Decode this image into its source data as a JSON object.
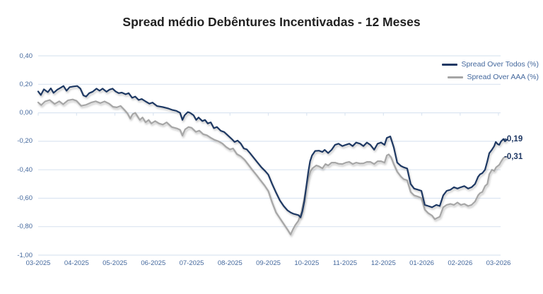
{
  "colors": {
    "series_todos": "#1f3864",
    "series_aaa": "#a6a6a6",
    "gridline": "#dbe5f1",
    "axis_text": "#44689d",
    "annotation_text": "#1f3864",
    "title_text": "#212121",
    "background": "#ffffff"
  },
  "chart_data": {
    "type": "line",
    "title": "Spread médio Debêntures Incentivadas - 12 Meses",
    "xlabel": "",
    "ylabel": "",
    "grid": true,
    "legend_position": "top-right",
    "x_axis": {
      "labels": [
        "03-2025",
        "04-2025",
        "05-2025",
        "06-2025",
        "07-2025",
        "08-2025",
        "09-2025",
        "10-2025",
        "11-2025",
        "12-2025",
        "01-2026",
        "02-2026",
        "03-2026"
      ],
      "unit_note": "x values of points are months after 03-2025"
    },
    "y_axis": {
      "min": -1.0,
      "max": 0.4,
      "step": 0.2,
      "tick_labels": [
        "0,40",
        "0,20",
        "0,00",
        "-0,20",
        "-0,40",
        "-0,60",
        "-0,80",
        "-1,00"
      ],
      "tick_values": [
        0.4,
        0.2,
        0.0,
        -0.2,
        -0.4,
        -0.6,
        -0.8,
        -1.0
      ]
    },
    "annotations": {
      "todos_end": "-0,19",
      "aaa_end": "-0,31"
    },
    "series": [
      {
        "name": "Spread Over Todos (%)",
        "color": "#1f3864",
        "end_value": -0.19,
        "points": [
          [
            0.0,
            0.15
          ],
          [
            0.07,
            0.125
          ],
          [
            0.15,
            0.165
          ],
          [
            0.25,
            0.145
          ],
          [
            0.33,
            0.172
          ],
          [
            0.4,
            0.14
          ],
          [
            0.5,
            0.163
          ],
          [
            0.58,
            0.175
          ],
          [
            0.66,
            0.188
          ],
          [
            0.74,
            0.155
          ],
          [
            0.82,
            0.18
          ],
          [
            0.92,
            0.185
          ],
          [
            1.02,
            0.188
          ],
          [
            1.1,
            0.17
          ],
          [
            1.18,
            0.122
          ],
          [
            1.25,
            0.114
          ],
          [
            1.33,
            0.138
          ],
          [
            1.42,
            0.148
          ],
          [
            1.52,
            0.17
          ],
          [
            1.6,
            0.155
          ],
          [
            1.68,
            0.17
          ],
          [
            1.78,
            0.148
          ],
          [
            1.86,
            0.163
          ],
          [
            1.94,
            0.17
          ],
          [
            2.02,
            0.15
          ],
          [
            2.1,
            0.138
          ],
          [
            2.18,
            0.142
          ],
          [
            2.28,
            0.13
          ],
          [
            2.36,
            0.138
          ],
          [
            2.45,
            0.105
          ],
          [
            2.53,
            0.114
          ],
          [
            2.62,
            0.09
          ],
          [
            2.7,
            0.097
          ],
          [
            2.8,
            0.08
          ],
          [
            2.9,
            0.064
          ],
          [
            2.98,
            0.072
          ],
          [
            3.1,
            0.047
          ],
          [
            3.25,
            0.04
          ],
          [
            3.4,
            0.03
          ],
          [
            3.5,
            0.02
          ],
          [
            3.6,
            0.014
          ],
          [
            3.7,
            0.0
          ],
          [
            3.76,
            -0.05
          ],
          [
            3.82,
            -0.017
          ],
          [
            3.9,
            0.005
          ],
          [
            3.96,
            0.0
          ],
          [
            4.05,
            -0.017
          ],
          [
            4.12,
            -0.05
          ],
          [
            4.18,
            -0.033
          ],
          [
            4.28,
            -0.058
          ],
          [
            4.35,
            -0.05
          ],
          [
            4.42,
            -0.075
          ],
          [
            4.5,
            -0.067
          ],
          [
            4.58,
            -0.108
          ],
          [
            4.66,
            -0.1
          ],
          [
            4.76,
            -0.126
          ],
          [
            4.85,
            -0.135
          ],
          [
            4.95,
            -0.16
          ],
          [
            5.05,
            -0.185
          ],
          [
            5.12,
            -0.205
          ],
          [
            5.2,
            -0.195
          ],
          [
            5.28,
            -0.215
          ],
          [
            5.36,
            -0.25
          ],
          [
            5.44,
            -0.257
          ],
          [
            5.52,
            -0.283
          ],
          [
            5.62,
            -0.316
          ],
          [
            5.72,
            -0.35
          ],
          [
            5.82,
            -0.383
          ],
          [
            5.92,
            -0.41
          ],
          [
            6.0,
            -0.435
          ],
          [
            6.1,
            -0.5
          ],
          [
            6.2,
            -0.56
          ],
          [
            6.3,
            -0.615
          ],
          [
            6.4,
            -0.655
          ],
          [
            6.5,
            -0.685
          ],
          [
            6.58,
            -0.7
          ],
          [
            6.66,
            -0.71
          ],
          [
            6.73,
            -0.715
          ],
          [
            6.79,
            -0.72
          ],
          [
            6.84,
            -0.735
          ],
          [
            6.89,
            -0.69
          ],
          [
            6.94,
            -0.62
          ],
          [
            6.99,
            -0.52
          ],
          [
            7.04,
            -0.42
          ],
          [
            7.09,
            -0.34
          ],
          [
            7.14,
            -0.3
          ],
          [
            7.22,
            -0.268
          ],
          [
            7.32,
            -0.266
          ],
          [
            7.41,
            -0.275
          ],
          [
            7.47,
            -0.26
          ],
          [
            7.56,
            -0.283
          ],
          [
            7.65,
            -0.26
          ],
          [
            7.74,
            -0.225
          ],
          [
            7.83,
            -0.217
          ],
          [
            7.93,
            -0.234
          ],
          [
            8.02,
            -0.225
          ],
          [
            8.11,
            -0.217
          ],
          [
            8.2,
            -0.234
          ],
          [
            8.29,
            -0.209
          ],
          [
            8.39,
            -0.217
          ],
          [
            8.48,
            -0.234
          ],
          [
            8.57,
            -0.209
          ],
          [
            8.66,
            -0.225
          ],
          [
            8.76,
            -0.259
          ],
          [
            8.85,
            -0.217
          ],
          [
            8.94,
            -0.209
          ],
          [
            9.03,
            -0.225
          ],
          [
            9.09,
            -0.176
          ],
          [
            9.18,
            -0.166
          ],
          [
            9.27,
            -0.242
          ],
          [
            9.36,
            -0.35
          ],
          [
            9.46,
            -0.374
          ],
          [
            9.53,
            -0.383
          ],
          [
            9.62,
            -0.391
          ],
          [
            9.71,
            -0.5
          ],
          [
            9.8,
            -0.532
          ],
          [
            9.9,
            -0.54
          ],
          [
            9.99,
            -0.548
          ],
          [
            10.08,
            -0.647
          ],
          [
            10.17,
            -0.655
          ],
          [
            10.27,
            -0.664
          ],
          [
            10.38,
            -0.647
          ],
          [
            10.47,
            -0.655
          ],
          [
            10.56,
            -0.58
          ],
          [
            10.65,
            -0.548
          ],
          [
            10.75,
            -0.54
          ],
          [
            10.84,
            -0.523
          ],
          [
            10.93,
            -0.532
          ],
          [
            11.02,
            -0.523
          ],
          [
            11.11,
            -0.515
          ],
          [
            11.21,
            -0.532
          ],
          [
            11.3,
            -0.523
          ],
          [
            11.39,
            -0.5
          ],
          [
            11.47,
            -0.45
          ],
          [
            11.52,
            -0.432
          ],
          [
            11.58,
            -0.424
          ],
          [
            11.65,
            -0.4
          ],
          [
            11.71,
            -0.34
          ],
          [
            11.76,
            -0.284
          ],
          [
            11.83,
            -0.259
          ],
          [
            11.89,
            -0.234
          ],
          [
            11.93,
            -0.205
          ],
          [
            11.98,
            -0.22
          ],
          [
            12.02,
            -0.225
          ],
          [
            12.07,
            -0.2
          ],
          [
            12.13,
            -0.184
          ],
          [
            12.17,
            -0.2
          ],
          [
            12.22,
            -0.19
          ]
        ]
      },
      {
        "name": "Spread Over AAA (%)",
        "color": "#a6a6a6",
        "end_value": -0.31,
        "points": [
          [
            0.0,
            0.073
          ],
          [
            0.08,
            0.054
          ],
          [
            0.18,
            0.08
          ],
          [
            0.3,
            0.09
          ],
          [
            0.43,
            0.062
          ],
          [
            0.55,
            0.081
          ],
          [
            0.65,
            0.06
          ],
          [
            0.78,
            0.088
          ],
          [
            0.9,
            0.094
          ],
          [
            1.0,
            0.084
          ],
          [
            1.12,
            0.049
          ],
          [
            1.25,
            0.056
          ],
          [
            1.38,
            0.072
          ],
          [
            1.5,
            0.081
          ],
          [
            1.62,
            0.068
          ],
          [
            1.73,
            0.08
          ],
          [
            1.85,
            0.064
          ],
          [
            1.95,
            0.042
          ],
          [
            2.05,
            0.038
          ],
          [
            2.15,
            0.048
          ],
          [
            2.25,
            0.02
          ],
          [
            2.33,
            -0.005
          ],
          [
            2.4,
            -0.04
          ],
          [
            2.46,
            -0.01
          ],
          [
            2.53,
            0.0
          ],
          [
            2.6,
            -0.03
          ],
          [
            2.65,
            -0.05
          ],
          [
            2.72,
            -0.033
          ],
          [
            2.8,
            -0.067
          ],
          [
            2.88,
            -0.05
          ],
          [
            2.95,
            -0.075
          ],
          [
            3.05,
            -0.058
          ],
          [
            3.15,
            -0.075
          ],
          [
            3.25,
            -0.083
          ],
          [
            3.35,
            -0.067
          ],
          [
            3.48,
            -0.1
          ],
          [
            3.62,
            -0.11
          ],
          [
            3.7,
            -0.12
          ],
          [
            3.76,
            -0.16
          ],
          [
            3.83,
            -0.116
          ],
          [
            3.92,
            -0.1
          ],
          [
            4.0,
            -0.105
          ],
          [
            4.11,
            -0.134
          ],
          [
            4.2,
            -0.125
          ],
          [
            4.3,
            -0.15
          ],
          [
            4.4,
            -0.158
          ],
          [
            4.5,
            -0.175
          ],
          [
            4.6,
            -0.19
          ],
          [
            4.7,
            -0.2
          ],
          [
            4.8,
            -0.215
          ],
          [
            4.9,
            -0.24
          ],
          [
            5.0,
            -0.257
          ],
          [
            5.08,
            -0.25
          ],
          [
            5.18,
            -0.29
          ],
          [
            5.28,
            -0.305
          ],
          [
            5.38,
            -0.33
          ],
          [
            5.48,
            -0.365
          ],
          [
            5.58,
            -0.4
          ],
          [
            5.7,
            -0.44
          ],
          [
            5.8,
            -0.475
          ],
          [
            5.9,
            -0.51
          ],
          [
            6.0,
            -0.55
          ],
          [
            6.1,
            -0.63
          ],
          [
            6.2,
            -0.7
          ],
          [
            6.3,
            -0.74
          ],
          [
            6.4,
            -0.78
          ],
          [
            6.5,
            -0.82
          ],
          [
            6.58,
            -0.855
          ],
          [
            6.64,
            -0.82
          ],
          [
            6.7,
            -0.79
          ],
          [
            6.78,
            -0.76
          ],
          [
            6.86,
            -0.7
          ],
          [
            6.93,
            -0.61
          ],
          [
            6.99,
            -0.52
          ],
          [
            7.04,
            -0.46
          ],
          [
            7.1,
            -0.41
          ],
          [
            7.16,
            -0.388
          ],
          [
            7.25,
            -0.37
          ],
          [
            7.32,
            -0.376
          ],
          [
            7.41,
            -0.39
          ],
          [
            7.49,
            -0.36
          ],
          [
            7.56,
            -0.37
          ],
          [
            7.65,
            -0.35
          ],
          [
            7.74,
            -0.35
          ],
          [
            7.83,
            -0.358
          ],
          [
            7.93,
            -0.36
          ],
          [
            8.02,
            -0.35
          ],
          [
            8.11,
            -0.345
          ],
          [
            8.2,
            -0.36
          ],
          [
            8.29,
            -0.35
          ],
          [
            8.39,
            -0.356
          ],
          [
            8.48,
            -0.355
          ],
          [
            8.57,
            -0.345
          ],
          [
            8.66,
            -0.345
          ],
          [
            8.76,
            -0.36
          ],
          [
            8.85,
            -0.34
          ],
          [
            8.94,
            -0.34
          ],
          [
            9.03,
            -0.35
          ],
          [
            9.09,
            -0.3
          ],
          [
            9.14,
            -0.292
          ],
          [
            9.2,
            -0.312
          ],
          [
            9.27,
            -0.36
          ],
          [
            9.36,
            -0.414
          ],
          [
            9.46,
            -0.449
          ],
          [
            9.53,
            -0.466
          ],
          [
            9.62,
            -0.474
          ],
          [
            9.71,
            -0.556
          ],
          [
            9.8,
            -0.58
          ],
          [
            9.9,
            -0.589
          ],
          [
            9.99,
            -0.598
          ],
          [
            10.08,
            -0.68
          ],
          [
            10.17,
            -0.705
          ],
          [
            10.27,
            -0.722
          ],
          [
            10.34,
            -0.747
          ],
          [
            10.47,
            -0.73
          ],
          [
            10.56,
            -0.664
          ],
          [
            10.65,
            -0.647
          ],
          [
            10.75,
            -0.64
          ],
          [
            10.84,
            -0.647
          ],
          [
            10.93,
            -0.63
          ],
          [
            11.02,
            -0.647
          ],
          [
            11.11,
            -0.64
          ],
          [
            11.21,
            -0.655
          ],
          [
            11.3,
            -0.647
          ],
          [
            11.39,
            -0.623
          ],
          [
            11.47,
            -0.58
          ],
          [
            11.52,
            -0.564
          ],
          [
            11.58,
            -0.556
          ],
          [
            11.65,
            -0.515
          ],
          [
            11.71,
            -0.5
          ],
          [
            11.76,
            -0.432
          ],
          [
            11.83,
            -0.4
          ],
          [
            11.89,
            -0.408
          ],
          [
            11.94,
            -0.383
          ],
          [
            12.02,
            -0.366
          ],
          [
            12.07,
            -0.342
          ],
          [
            12.13,
            -0.317
          ],
          [
            12.18,
            -0.309
          ],
          [
            12.22,
            -0.31
          ]
        ]
      }
    ]
  }
}
